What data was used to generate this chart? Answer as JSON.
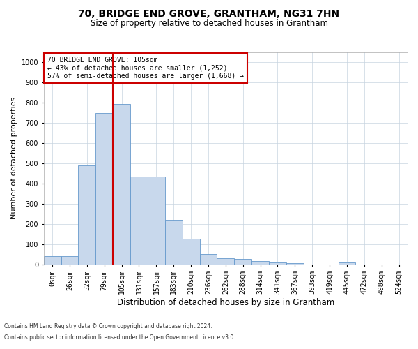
{
  "title": "70, BRIDGE END GROVE, GRANTHAM, NG31 7HN",
  "subtitle": "Size of property relative to detached houses in Grantham",
  "xlabel": "Distribution of detached houses by size in Grantham",
  "ylabel": "Number of detached properties",
  "footnote1": "Contains HM Land Registry data © Crown copyright and database right 2024.",
  "footnote2": "Contains public sector information licensed under the Open Government Licence v3.0.",
  "bin_labels": [
    "0sqm",
    "26sqm",
    "52sqm",
    "79sqm",
    "105sqm",
    "131sqm",
    "157sqm",
    "183sqm",
    "210sqm",
    "236sqm",
    "262sqm",
    "288sqm",
    "314sqm",
    "341sqm",
    "367sqm",
    "393sqm",
    "419sqm",
    "445sqm",
    "472sqm",
    "498sqm",
    "524sqm"
  ],
  "bar_values": [
    40,
    40,
    490,
    750,
    795,
    435,
    435,
    220,
    125,
    50,
    30,
    25,
    15,
    10,
    5,
    0,
    0,
    10,
    0,
    0,
    0
  ],
  "bar_color": "#c8d8ec",
  "bar_edge_color": "#6699cc",
  "vline_index": 4,
  "vline_color": "#cc0000",
  "annotation_text": "70 BRIDGE END GROVE: 105sqm\n← 43% of detached houses are smaller (1,252)\n57% of semi-detached houses are larger (1,668) →",
  "annotation_box_color": "#cc0000",
  "ylim": [
    0,
    1050
  ],
  "yticks": [
    0,
    100,
    200,
    300,
    400,
    500,
    600,
    700,
    800,
    900,
    1000
  ],
  "background_color": "#ffffff",
  "grid_color": "#c8d4e0",
  "title_fontsize": 10,
  "subtitle_fontsize": 8.5,
  "ylabel_fontsize": 8,
  "xlabel_fontsize": 8.5,
  "tick_fontsize": 7,
  "annotation_fontsize": 7,
  "footnote_fontsize": 5.5
}
